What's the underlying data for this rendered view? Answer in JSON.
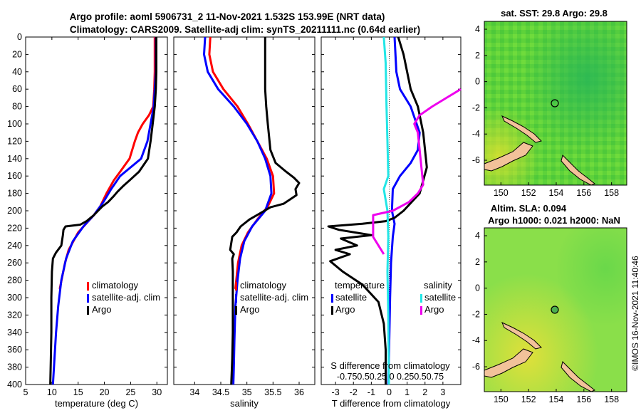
{
  "title": {
    "line1": "Argo profile: aoml 5906731_2 11-Nov-2021 1.532S 153.99E (NRT data)",
    "line2": "Climatology: CARS2009. Satellite-adj clim: synTS_20211111.nc (0.64d earlier)"
  },
  "watermark": "©IMOS 16-Nov-2021 11:40:46",
  "colors": {
    "climatology": "#ff0000",
    "satellite": "#0000ff",
    "argo": "#000000",
    "cyan": "#22e6e6",
    "magenta": "#ee00ee",
    "land": "#f2c29a"
  },
  "chart_data": [
    {
      "type": "line",
      "id": "temperature",
      "xlabel": "temperature (deg C)",
      "ylabel": "",
      "xlim": [
        5,
        32
      ],
      "ylim": [
        0,
        400
      ],
      "xticks": [
        5,
        10,
        15,
        20,
        25,
        30
      ],
      "yticks": [
        0,
        20,
        40,
        60,
        80,
        100,
        120,
        140,
        160,
        180,
        200,
        220,
        240,
        260,
        280,
        300,
        320,
        340,
        360,
        380,
        400
      ],
      "legend": [
        "climatology",
        "satellite-adj. clim",
        "Argo"
      ],
      "series": [
        {
          "name": "climatology",
          "color": "red",
          "points": [
            [
              29.6,
              0
            ],
            [
              29.6,
              40
            ],
            [
              29.5,
              60
            ],
            [
              29.3,
              80
            ],
            [
              28.5,
              90
            ],
            [
              27.3,
              100
            ],
            [
              26.4,
              110
            ],
            [
              25.8,
              120
            ],
            [
              24.8,
              140
            ],
            [
              23.0,
              155
            ],
            [
              21.8,
              165
            ],
            [
              20.4,
              180
            ],
            [
              19.2,
              195
            ],
            [
              18.0,
              205
            ],
            [
              16.5,
              215
            ],
            [
              15.0,
              225
            ],
            [
              14.1,
              235
            ],
            [
              13.2,
              245
            ],
            [
              12.5,
              260
            ],
            [
              12.0,
              275
            ],
            [
              11.5,
              290
            ]
          ]
        },
        {
          "name": "satellite-adj. clim",
          "color": "blue",
          "points": [
            [
              29.8,
              0
            ],
            [
              29.8,
              40
            ],
            [
              29.6,
              60
            ],
            [
              29.4,
              80
            ],
            [
              28.8,
              100
            ],
            [
              28.2,
              120
            ],
            [
              27.0,
              140
            ],
            [
              25.0,
              150
            ],
            [
              23.0,
              160
            ],
            [
              21.3,
              175
            ],
            [
              19.8,
              190
            ],
            [
              18.0,
              205
            ],
            [
              16.0,
              218
            ],
            [
              14.0,
              235
            ],
            [
              12.7,
              255
            ],
            [
              11.8,
              280
            ],
            [
              11.2,
              310
            ],
            [
              10.8,
              340
            ],
            [
              10.5,
              370
            ],
            [
              10.2,
              400
            ]
          ]
        },
        {
          "name": "Argo",
          "color": "black",
          "points": [
            [
              29.9,
              0
            ],
            [
              29.9,
              40
            ],
            [
              29.8,
              60
            ],
            [
              29.6,
              80
            ],
            [
              29.2,
              100
            ],
            [
              28.8,
              120
            ],
            [
              28.3,
              140
            ],
            [
              26.6,
              155
            ],
            [
              24.8,
              165
            ],
            [
              23.5,
              172
            ],
            [
              22.5,
              178
            ],
            [
              21.8,
              183
            ],
            [
              20.7,
              190
            ],
            [
              19.6,
              195
            ],
            [
              18.8,
              200
            ],
            [
              18.0,
              205
            ],
            [
              16.6,
              212
            ],
            [
              15.4,
              216
            ],
            [
              12.6,
              218
            ],
            [
              12.2,
              222
            ],
            [
              12.1,
              228
            ],
            [
              11.8,
              240
            ],
            [
              10.8,
              248
            ],
            [
              10.2,
              255
            ],
            [
              10.0,
              270
            ],
            [
              9.9,
              300
            ],
            [
              9.9,
              340
            ],
            [
              9.8,
              370
            ],
            [
              9.7,
              400
            ]
          ]
        }
      ]
    },
    {
      "type": "line",
      "id": "salinity",
      "xlabel": "salinity",
      "xlim": [
        33.6,
        36.3
      ],
      "ylim": [
        0,
        400
      ],
      "xticks": [
        34,
        34.5,
        35,
        35.5,
        36
      ],
      "legend": [
        "climatology",
        "satellite-adj. clim",
        "Argo"
      ],
      "series": [
        {
          "name": "climatology",
          "color": "red",
          "points": [
            [
              34.3,
              0
            ],
            [
              34.28,
              20
            ],
            [
              34.35,
              40
            ],
            [
              34.55,
              60
            ],
            [
              34.82,
              80
            ],
            [
              35.02,
              100
            ],
            [
              35.2,
              120
            ],
            [
              35.38,
              140
            ],
            [
              35.5,
              160
            ],
            [
              35.52,
              180
            ],
            [
              35.4,
              195
            ],
            [
              35.2,
              210
            ],
            [
              35.02,
              225
            ],
            [
              34.9,
              240
            ],
            [
              34.83,
              260
            ],
            [
              34.78,
              290
            ]
          ]
        },
        {
          "name": "satellite-adj. clim",
          "color": "blue",
          "points": [
            [
              34.2,
              0
            ],
            [
              34.18,
              20
            ],
            [
              34.25,
              40
            ],
            [
              34.45,
              60
            ],
            [
              34.75,
              80
            ],
            [
              35.0,
              100
            ],
            [
              35.2,
              120
            ],
            [
              35.35,
              140
            ],
            [
              35.45,
              160
            ],
            [
              35.47,
              180
            ],
            [
              35.35,
              200
            ],
            [
              35.1,
              218
            ],
            [
              34.95,
              235
            ],
            [
              34.87,
              255
            ],
            [
              34.82,
              280
            ],
            [
              34.78,
              310
            ],
            [
              34.76,
              350
            ],
            [
              34.75,
              380
            ],
            [
              34.74,
              400
            ]
          ]
        },
        {
          "name": "Argo",
          "color": "black",
          "points": [
            [
              35.35,
              0
            ],
            [
              35.35,
              60
            ],
            [
              35.37,
              80
            ],
            [
              35.4,
              100
            ],
            [
              35.45,
              130
            ],
            [
              35.55,
              145
            ],
            [
              35.75,
              155
            ],
            [
              35.9,
              162
            ],
            [
              36.0,
              168
            ],
            [
              35.93,
              175
            ],
            [
              35.95,
              182
            ],
            [
              35.8,
              188
            ],
            [
              35.7,
              192
            ],
            [
              35.45,
              196
            ],
            [
              35.25,
              203
            ],
            [
              35.05,
              210
            ],
            [
              34.88,
              218
            ],
            [
              34.8,
              225
            ],
            [
              34.72,
              230
            ],
            [
              34.68,
              245
            ],
            [
              34.75,
              250
            ],
            [
              34.72,
              255
            ],
            [
              34.73,
              270
            ],
            [
              34.73,
              300
            ],
            [
              34.73,
              340
            ],
            [
              34.72,
              370
            ],
            [
              34.7,
              400
            ]
          ]
        }
      ]
    },
    {
      "type": "line",
      "id": "difference",
      "xlabel": "T difference from climatology",
      "xlabel_top": "S difference from climatology",
      "xlim": [
        -3.8,
        4.0
      ],
      "ylim": [
        0,
        400
      ],
      "xticks": [
        -3,
        -2,
        -1,
        0,
        1,
        2,
        3
      ],
      "s_xticks_label": "-0.750.50.25 0  0.250.50.75",
      "legend_temperature_title": "temperature",
      "legend_salinity_title": "salinity",
      "legend_satellite": "satellite",
      "legend_argo": "Argo",
      "series": [
        {
          "name": "temperature satellite",
          "color": "blue",
          "points": [
            [
              0.3,
              0
            ],
            [
              0.4,
              40
            ],
            [
              0.6,
              60
            ],
            [
              1.2,
              80
            ],
            [
              1.7,
              110
            ],
            [
              1.6,
              130
            ],
            [
              1.2,
              145
            ],
            [
              0.6,
              160
            ],
            [
              0.2,
              175
            ],
            [
              0.15,
              200
            ],
            [
              0.3,
              215
            ],
            [
              0.2,
              230
            ],
            [
              0.1,
              260
            ],
            [
              0.05,
              300
            ],
            [
              0.0,
              350
            ],
            [
              -0.05,
              400
            ]
          ]
        },
        {
          "name": "temperature Argo",
          "color": "black",
          "points": [
            [
              0.5,
              0
            ],
            [
              0.8,
              20
            ],
            [
              1.0,
              40
            ],
            [
              1.2,
              60
            ],
            [
              1.6,
              80
            ],
            [
              1.9,
              110
            ],
            [
              2.1,
              150
            ],
            [
              1.7,
              180
            ],
            [
              0.8,
              200
            ],
            [
              0.3,
              208
            ],
            [
              -0.2,
              212
            ],
            [
              -1.5,
              215
            ],
            [
              -3.4,
              218
            ],
            [
              -2.8,
              222
            ],
            [
              -1.0,
              228
            ],
            [
              -2.7,
              232
            ],
            [
              -1.8,
              240
            ],
            [
              -3.0,
              245
            ],
            [
              -2.2,
              250
            ],
            [
              -3.3,
              258
            ],
            [
              -2.6,
              270
            ],
            [
              -1.5,
              285
            ],
            [
              -0.6,
              305
            ],
            [
              -0.3,
              330
            ],
            [
              -0.2,
              360
            ],
            [
              -0.2,
              400
            ]
          ]
        },
        {
          "name": "salinity satellite",
          "color": "cyan",
          "points": [
            [
              -0.3,
              0
            ],
            [
              -0.2,
              30
            ],
            [
              -0.15,
              80
            ],
            [
              -0.1,
              120
            ],
            [
              -0.05,
              160
            ],
            [
              -0.3,
              175
            ],
            [
              -0.1,
              200
            ],
            [
              -0.05,
              230
            ],
            [
              -0.1,
              270
            ],
            [
              -0.05,
              320
            ],
            [
              -0.02,
              400
            ]
          ]
        },
        {
          "name": "salinity Argo",
          "color": "magenta",
          "points": [
            [
              4.0,
              60
            ],
            [
              3.2,
              70
            ],
            [
              2.4,
              80
            ],
            [
              1.7,
              90
            ],
            [
              1.4,
              100
            ],
            [
              1.6,
              110
            ],
            [
              1.7,
              130
            ],
            [
              1.8,
              150
            ],
            [
              1.9,
              170
            ],
            [
              1.6,
              180
            ],
            [
              1.1,
              190
            ],
            [
              0.2,
              200
            ],
            [
              -0.9,
              205
            ],
            [
              -0.9,
              215
            ],
            [
              -0.9,
              230
            ],
            [
              -0.6,
              240
            ],
            [
              -0.3,
              250
            ]
          ]
        }
      ]
    }
  ],
  "maps": [
    {
      "id": "sst",
      "title": "sat. SST: 29.8 Argo: 29.8",
      "xticks": [
        "150",
        "152",
        "154",
        "156",
        "158"
      ],
      "yticks": [
        "4",
        "2",
        "0",
        "-2",
        "-4",
        "-6"
      ]
    },
    {
      "id": "sla",
      "title1": "Altim. SLA: 0.094",
      "title2": "Argo h1000: 0.021 h2000: NaN",
      "xticks": [
        "150",
        "152",
        "154",
        "156",
        "158"
      ],
      "yticks": [
        "4",
        "2",
        "0",
        "-2",
        "-4",
        "-6"
      ]
    }
  ]
}
